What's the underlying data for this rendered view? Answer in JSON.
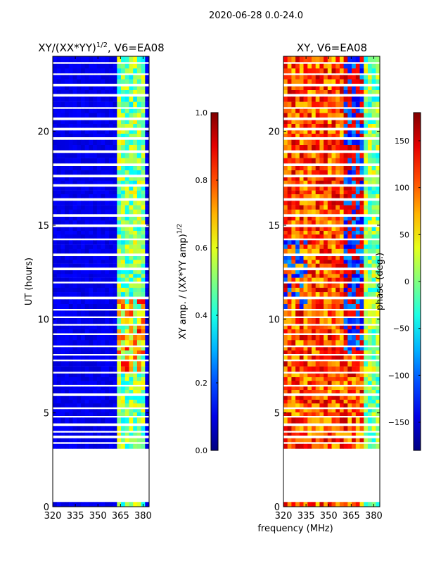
{
  "chart_data": {
    "suptitle": "2020-06-28 0.0-24.0",
    "xlabel": "frequency (MHz)",
    "panels": [
      {
        "type": "heatmap",
        "title_main": "XY/(XX*YY)",
        "title_exp": "1/2",
        "title_tail": ", V6=EA08",
        "ylabel": "UT (hours)",
        "xlim": [
          320,
          384
        ],
        "ylim": [
          0,
          24
        ],
        "xticks": [
          "320",
          "335",
          "350",
          "365",
          "380"
        ],
        "xtick_values": [
          320,
          335,
          350,
          365,
          380
        ],
        "yticks": [
          "0",
          "5",
          "10",
          "15",
          "20"
        ],
        "ytick_values": [
          0,
          5,
          10,
          15,
          20
        ],
        "colorbar": {
          "label": "XY amp. / (XX*YY amp)",
          "label_exp": "1/2",
          "range": [
            0.0,
            1.0
          ],
          "ticks": [
            "0.0",
            "0.2",
            "0.4",
            "0.6",
            "0.8",
            "1.0"
          ],
          "tick_values": [
            0.0,
            0.2,
            0.4,
            0.6,
            0.8,
            1.0
          ]
        }
      },
      {
        "type": "heatmap",
        "title": "XY, V6=EA08",
        "ylabel": "phase (deg.)",
        "xlim": [
          320,
          384
        ],
        "ylim": [
          0,
          24
        ],
        "xticks": [
          "320",
          "335",
          "350",
          "365",
          "380"
        ],
        "xtick_values": [
          320,
          335,
          350,
          365,
          380
        ],
        "yticks": [
          "0",
          "5",
          "10",
          "15",
          "20"
        ],
        "ytick_values": [
          0,
          5,
          10,
          15,
          20
        ],
        "colorbar": {
          "range": [
            -180,
            180
          ],
          "ticks": [
            "−150",
            "−100",
            "−50",
            "0",
            "50",
            "100",
            "150"
          ],
          "tick_values": [
            -150,
            -100,
            -50,
            0,
            50,
            100,
            150
          ]
        }
      }
    ],
    "data_blocks_ut": [
      [
        0.0,
        0.25
      ],
      [
        3.1,
        3.35
      ],
      [
        3.45,
        3.65
      ],
      [
        3.8,
        3.95
      ],
      [
        4.05,
        4.3
      ],
      [
        4.45,
        4.75
      ],
      [
        4.85,
        5.2
      ],
      [
        5.3,
        5.9
      ],
      [
        6.05,
        6.4
      ],
      [
        6.5,
        7.1
      ],
      [
        7.2,
        7.75
      ],
      [
        7.85,
        8.05
      ],
      [
        8.15,
        8.5
      ],
      [
        8.6,
        9.15
      ],
      [
        9.25,
        9.65
      ],
      [
        9.75,
        10.05
      ],
      [
        10.15,
        10.45
      ],
      [
        10.55,
        11.05
      ],
      [
        11.2,
        11.9
      ],
      [
        12.0,
        12.6
      ],
      [
        12.75,
        13.35
      ],
      [
        13.5,
        14.2
      ],
      [
        14.3,
        14.9
      ],
      [
        15.05,
        15.45
      ],
      [
        15.6,
        16.3
      ],
      [
        16.45,
        17.05
      ],
      [
        17.2,
        17.55
      ],
      [
        17.7,
        18.15
      ],
      [
        18.3,
        18.85
      ],
      [
        19.0,
        19.55
      ],
      [
        19.7,
        20.05
      ],
      [
        20.2,
        20.6
      ],
      [
        20.75,
        21.2
      ],
      [
        21.3,
        21.85
      ],
      [
        22.0,
        22.4
      ],
      [
        22.55,
        23.0
      ],
      [
        23.1,
        23.6
      ],
      [
        23.7,
        24.0
      ]
    ]
  }
}
